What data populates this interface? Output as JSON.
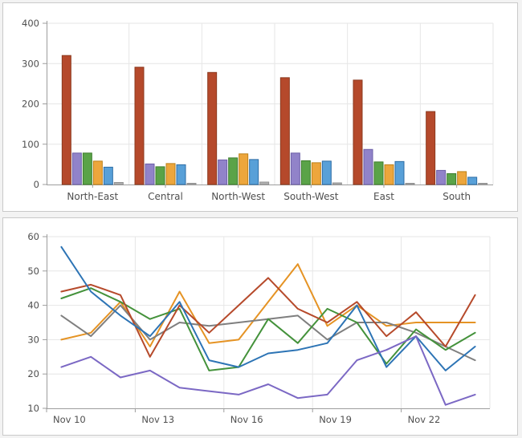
{
  "page": {
    "background": "#f3f3f3",
    "panel_border": "#c9c9c9"
  },
  "chart_data": [
    {
      "type": "bar",
      "title": "",
      "xlabel": "",
      "ylabel": "",
      "categories": [
        "North-East",
        "Central",
        "North-West",
        "South-West",
        "East",
        "South"
      ],
      "series": [
        {
          "name": "red",
          "color": "#b5492b",
          "border": "#8c3a1f",
          "values": [
            320,
            291,
            278,
            265,
            259,
            181
          ]
        },
        {
          "name": "purple",
          "color": "#9183c9",
          "border": "#6c5fa7",
          "values": [
            78,
            51,
            61,
            78,
            87,
            35
          ]
        },
        {
          "name": "green",
          "color": "#5aa348",
          "border": "#3d7c2d",
          "values": [
            78,
            44,
            66,
            59,
            56,
            27
          ]
        },
        {
          "name": "orange",
          "color": "#eda63c",
          "border": "#bd8018",
          "values": [
            58,
            52,
            76,
            54,
            49,
            32
          ]
        },
        {
          "name": "blue",
          "color": "#58a0d8",
          "border": "#2d6da5",
          "values": [
            43,
            49,
            62,
            58,
            57,
            18
          ]
        },
        {
          "name": "gray",
          "color": "#b2b2b2",
          "border": "#8f8f8f",
          "values": [
            5,
            3,
            6,
            4,
            2,
            2
          ]
        }
      ],
      "ylim": [
        0,
        400
      ],
      "yticks": [
        0,
        100,
        200,
        300,
        400
      ],
      "grid": true,
      "legend": "none"
    },
    {
      "type": "line",
      "title": "",
      "xlabel": "",
      "ylabel": "",
      "x": [
        "Nov 10",
        "Nov 11",
        "Nov 12",
        "Nov 13",
        "Nov 14",
        "Nov 15",
        "Nov 16",
        "Nov 17",
        "Nov 18",
        "Nov 19",
        "Nov 20",
        "Nov 21",
        "Nov 22",
        "Nov 23",
        "Nov 24"
      ],
      "x_tick_indices": [
        0,
        3,
        6,
        9,
        12
      ],
      "x_tick_labels": [
        "Nov 10",
        "Nov 13",
        "Nov 16",
        "Nov 19",
        "Nov 22"
      ],
      "series": [
        {
          "name": "orange",
          "color": "#e59324",
          "values": [
            30,
            32,
            41,
            28,
            44,
            29,
            30,
            41,
            52,
            34,
            40,
            34,
            35,
            35,
            35
          ]
        },
        {
          "name": "gray",
          "color": "#7f7f7f",
          "values": [
            37,
            31,
            40,
            30,
            35,
            34,
            35,
            36,
            37,
            30,
            35,
            35,
            32,
            28,
            24
          ]
        },
        {
          "name": "green",
          "color": "#44923b",
          "values": [
            42,
            45,
            41,
            36,
            39,
            21,
            22,
            36,
            29,
            39,
            35,
            23,
            33,
            27,
            32
          ]
        },
        {
          "name": "red",
          "color": "#b64a2b",
          "values": [
            44,
            46,
            43,
            25,
            40,
            32,
            40,
            48,
            39,
            35,
            41,
            31,
            38,
            28,
            43
          ]
        },
        {
          "name": "blue",
          "color": "#2d74b5",
          "values": [
            57,
            44,
            37,
            31,
            41,
            24,
            22,
            26,
            27,
            29,
            40,
            22,
            31,
            21,
            28
          ]
        },
        {
          "name": "purple",
          "color": "#7b68c4",
          "values": [
            22,
            25,
            19,
            21,
            16,
            15,
            14,
            17,
            13,
            14,
            24,
            27,
            31,
            11,
            14
          ]
        }
      ],
      "ylim": [
        10,
        60
      ],
      "yticks": [
        10,
        20,
        30,
        40,
        50,
        60
      ],
      "grid": true,
      "legend": "none"
    }
  ],
  "style": {
    "grid_color": "#e6e6e6",
    "axis_color": "#9d9d9d",
    "tick_label_color": "#4f4f4f"
  }
}
